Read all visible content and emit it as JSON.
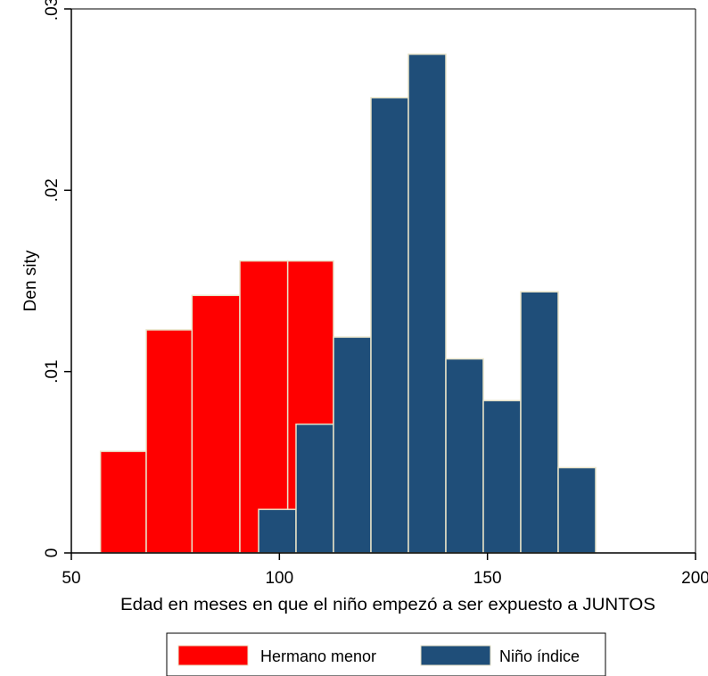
{
  "chart_data": {
    "type": "bar",
    "title": "",
    "xlabel": "Edad en meses en que el niño empezó a ser expuesto a JUNTOS",
    "ylabel": "Den sity",
    "xlim": [
      50,
      200
    ],
    "ylim": [
      0,
      0.03
    ],
    "x_ticks": [
      {
        "value": 50,
        "label": "50"
      },
      {
        "value": 100,
        "label": "100"
      },
      {
        "value": 150,
        "label": "150"
      },
      {
        "value": 200,
        "label": "200"
      }
    ],
    "y_ticks": [
      {
        "value": 0,
        "label": "0"
      },
      {
        "value": 0.01,
        "label": ".01"
      },
      {
        "value": 0.02,
        "label": ".02"
      },
      {
        "value": 0.03,
        "label": ".03"
      }
    ],
    "grid": false,
    "legend_position": "bottom",
    "series": [
      {
        "name": "Hermano menor",
        "color": "#ff0000",
        "bins": [
          {
            "x0": 57,
            "x1": 68,
            "density": 0.0056
          },
          {
            "x0": 68,
            "x1": 79,
            "density": 0.0123
          },
          {
            "x0": 79,
            "x1": 90.5,
            "density": 0.0142
          },
          {
            "x0": 90.5,
            "x1": 102,
            "density": 0.0161
          },
          {
            "x0": 102,
            "x1": 113,
            "density": 0.0161
          }
        ]
      },
      {
        "name": "Niño índice",
        "color": "#1f4e79",
        "bins": [
          {
            "x0": 95,
            "x1": 104,
            "density": 0.0024
          },
          {
            "x0": 104,
            "x1": 113,
            "density": 0.0071
          },
          {
            "x0": 113,
            "x1": 122,
            "density": 0.0119
          },
          {
            "x0": 122,
            "x1": 131,
            "density": 0.0251
          },
          {
            "x0": 131,
            "x1": 140,
            "density": 0.0275
          },
          {
            "x0": 140,
            "x1": 149,
            "density": 0.0107
          },
          {
            "x0": 149,
            "x1": 158,
            "density": 0.0084
          },
          {
            "x0": 158,
            "x1": 167,
            "density": 0.0144
          },
          {
            "x0": 167,
            "x1": 176,
            "density": 0.0047
          }
        ]
      }
    ]
  }
}
